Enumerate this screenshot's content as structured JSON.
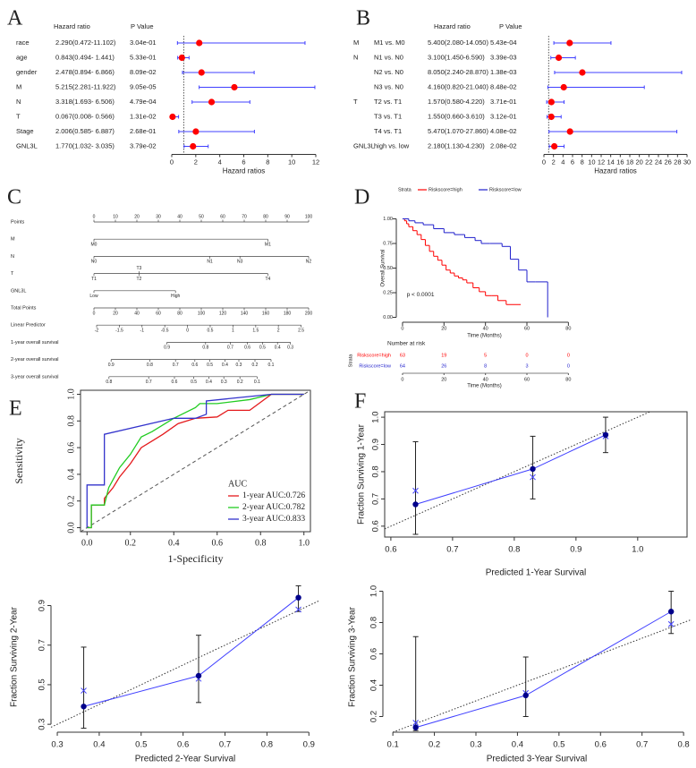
{
  "chart_data": [
    {
      "type": "forest",
      "panel": "A",
      "columns": [
        "Hazard ratio",
        "P Value"
      ],
      "categories": [
        "race",
        "age",
        "gender",
        "M",
        "N",
        "T",
        "Stage",
        "GNL3L"
      ],
      "values": [
        2.29,
        0.843,
        2.478,
        5.215,
        3.318,
        0.067,
        2.006,
        1.77
      ],
      "value_labels": [
        "2.290(0.472-11.102)",
        "0.843(0.494- 1.441)",
        "2.478(0.894- 6.866)",
        "5.215(2.281-11.922)",
        "3.318(1.693- 6.506)",
        "0.067(0.008- 0.566)",
        "2.006(0.585- 6.887)",
        "1.770(1.032- 3.035)"
      ],
      "lower": [
        0.472,
        0.494,
        0.894,
        2.281,
        1.693,
        0.008,
        0.585,
        1.032
      ],
      "upper": [
        11.102,
        1.441,
        6.866,
        11.922,
        6.506,
        0.566,
        6.887,
        3.035
      ],
      "p_values": [
        "3.04e-01",
        "5.33e-01",
        "8.09e-02",
        "9.05e-05",
        "4.79e-04",
        "1.31e-02",
        "2.68e-01",
        "3.79e-02"
      ],
      "color": "#ff0000",
      "ci_color": "#4040ff",
      "reference": 1,
      "xlim": [
        0,
        12
      ],
      "xticks": [
        0,
        2,
        4,
        6,
        8,
        10,
        12
      ],
      "xlabel": "Hazard ratios"
    },
    {
      "type": "forest",
      "panel": "B",
      "columns": [
        "Hazard ratio",
        "P Value"
      ],
      "groups": [
        "M",
        "N",
        null,
        null,
        "T",
        null,
        null,
        "GNL3L"
      ],
      "categories": [
        "M1 vs. M0",
        "N1 vs. N0",
        "N2 vs. N0",
        "N3 vs. N0",
        "T2 vs. T1",
        "T3 vs. T1",
        "T4 vs. T1",
        "high vs. low"
      ],
      "values": [
        5.4,
        3.1,
        8.05,
        4.16,
        1.57,
        1.55,
        5.47,
        2.18
      ],
      "value_labels": [
        "5.400(2.080-14.050)",
        "3.100(1.450-6.590)",
        "8.050(2.240-28.870)",
        "4.160(0.820-21.040)",
        "1.570(0.580-4.220)",
        "1.550(0.660-3.610)",
        "5.470(1.070-27.860)",
        "2.180(1.130-4.230)"
      ],
      "lower": [
        2.08,
        1.45,
        2.24,
        0.82,
        0.58,
        0.66,
        1.07,
        1.13
      ],
      "upper": [
        14.05,
        6.59,
        28.87,
        21.04,
        4.22,
        3.61,
        27.86,
        4.23
      ],
      "p_values": [
        "5.43e-04",
        "3.39e-03",
        "1.38e-03",
        "8.48e-02",
        "3.71e-01",
        "3.12e-01",
        "4.08e-02",
        "2.08e-02"
      ],
      "color": "#ff0000",
      "ci_color": "#4040ff",
      "reference": 1,
      "xlim": [
        0,
        30
      ],
      "xticks": [
        0,
        2,
        4,
        6,
        8,
        10,
        12,
        14,
        16,
        18,
        20,
        22,
        24,
        26,
        28,
        30
      ],
      "xlabel": "Hazard ratios"
    },
    {
      "type": "nomogram",
      "panel": "C",
      "rows": [
        {
          "name": "Points",
          "xlim": [
            0,
            100
          ],
          "ticks": [
            0,
            10,
            20,
            30,
            40,
            50,
            60,
            70,
            80,
            90,
            100
          ]
        },
        {
          "name": "M",
          "xlim": [
            0,
            100
          ],
          "ticks": [
            "M0",
            "M1"
          ],
          "at": [
            0,
            81
          ]
        },
        {
          "name": "N",
          "xlim": [
            0,
            100
          ],
          "ticks": [
            "N0",
            "N1",
            "N2",
            "N3"
          ],
          "at": [
            0,
            54,
            100,
            68
          ]
        },
        {
          "name": "T",
          "xlim": [
            0,
            100
          ],
          "ticks": [
            "T1",
            "T2",
            "T3",
            "T4"
          ],
          "at": [
            0,
            21,
            21,
            81
          ]
        },
        {
          "name": "GNL3L",
          "xlim": [
            0,
            100
          ],
          "ticks": [
            "Low",
            "High"
          ],
          "at": [
            0,
            38
          ]
        },
        {
          "name": "Total Points",
          "xlim": [
            0,
            200
          ],
          "ticks": [
            0,
            20,
            40,
            60,
            80,
            100,
            120,
            140,
            160,
            180,
            200
          ]
        },
        {
          "name": "Linear Predictor",
          "xlim": [
            0,
            200
          ],
          "ticks": [
            -2,
            -1.5,
            -1,
            -0.5,
            0,
            0.5,
            1,
            1.5,
            2,
            2.5
          ],
          "at": [
            2.5,
            23.7,
            44.8,
            66,
            87.2,
            108.3,
            129.5,
            150.7,
            171.8,
            193
          ]
        },
        {
          "name": "1-year overall survival",
          "xlim": [
            0,
            200
          ],
          "ticks": [
            0.9,
            0.8,
            0.7,
            0.6,
            0.5,
            0.4,
            0.3
          ],
          "at": [
            68,
            104,
            127,
            143,
            157,
            171,
            183
          ]
        },
        {
          "name": "2-year overall survival",
          "xlim": [
            0,
            200
          ],
          "ticks": [
            0.9,
            0.8,
            0.7,
            0.6,
            0.5,
            0.4,
            0.3,
            0.2,
            0.1
          ],
          "at": [
            16,
            52,
            76,
            94,
            108,
            122,
            135,
            150,
            165
          ]
        },
        {
          "name": "3-year overall survival",
          "xlim": [
            0,
            200
          ],
          "ticks": [
            0.8,
            0.7,
            0.6,
            0.5,
            0.4,
            0.3,
            0.2,
            0.1
          ],
          "at": [
            14,
            51,
            75,
            93,
            107,
            121,
            136,
            152
          ]
        }
      ]
    },
    {
      "type": "km",
      "panel": "D",
      "legend_title": "Strata",
      "series": [
        {
          "name": "Riskscore=high",
          "color": "#ff0000",
          "x": [
            0,
            1,
            2,
            3,
            5,
            7,
            9,
            11,
            13,
            15,
            17,
            19,
            21,
            23,
            25,
            27,
            29,
            31,
            34,
            37,
            40,
            43,
            46,
            50,
            57
          ],
          "values": [
            1,
            0.98,
            0.95,
            0.92,
            0.88,
            0.84,
            0.79,
            0.73,
            0.67,
            0.62,
            0.58,
            0.53,
            0.48,
            0.45,
            0.42,
            0.4,
            0.38,
            0.35,
            0.3,
            0.26,
            0.22,
            0.22,
            0.17,
            0.13,
            0.13
          ]
        },
        {
          "name": "Riskscore=low",
          "color": "#1f1fcc",
          "x": [
            0,
            3,
            6,
            10,
            15,
            20,
            25,
            30,
            35,
            38,
            42,
            48,
            52,
            56,
            60,
            64,
            70
          ],
          "values": [
            1,
            0.98,
            0.96,
            0.94,
            0.9,
            0.86,
            0.84,
            0.81,
            0.78,
            0.75,
            0.75,
            0.72,
            0.59,
            0.48,
            0.36,
            0.36,
            0
          ]
        }
      ],
      "xlim": [
        -3,
        82
      ],
      "xticks": [
        0,
        20,
        40,
        60,
        80
      ],
      "ylim": [
        -0.05,
        1.05
      ],
      "yticks": [
        {
          "value": 0,
          "label": "0.00"
        },
        0.25,
        {
          "value": 0.5,
          "label": "0.50"
        },
        0.75,
        {
          "value": 1,
          "label": "1.00"
        }
      ],
      "xlabel": "Time (Months)",
      "ylabel": "Overall Survival",
      "annotation": "p < 0.0001",
      "risk_table": {
        "title": "Number at risk",
        "ylabel": "Strata",
        "xlabel": "Time (Months)",
        "times": [
          0,
          20,
          40,
          60,
          80
        ],
        "rows": [
          [
            63,
            19,
            5,
            0,
            0
          ],
          [
            64,
            26,
            8,
            3,
            0
          ]
        ]
      }
    },
    {
      "type": "roc",
      "panel": "E",
      "frame": true,
      "legend_title": "AUC",
      "series": [
        {
          "name": "1-year AUC:0.726",
          "color": "#e41a1c",
          "x": [
            0,
            0.02,
            0.02,
            0.08,
            0.08,
            0.12,
            0.15,
            0.2,
            0.25,
            0.3,
            0.35,
            0.42,
            0.5,
            0.6,
            0.65,
            0.75,
            0.85,
            1
          ],
          "values": [
            0,
            0,
            0.17,
            0.17,
            0.22,
            0.3,
            0.38,
            0.48,
            0.6,
            0.65,
            0.7,
            0.78,
            0.82,
            0.83,
            0.88,
            0.88,
            1,
            1
          ]
        },
        {
          "name": "2-year AUC:0.782",
          "color": "#22cc22",
          "x": [
            0,
            0.02,
            0.02,
            0.08,
            0.1,
            0.15,
            0.2,
            0.25,
            0.3,
            0.4,
            0.5,
            0.52,
            0.6,
            0.75,
            0.85,
            1
          ],
          "values": [
            0,
            0,
            0.17,
            0.17,
            0.3,
            0.45,
            0.55,
            0.68,
            0.72,
            0.82,
            0.9,
            0.93,
            0.93,
            0.96,
            1,
            1
          ]
        },
        {
          "name": "3-year AUC:0.833",
          "color": "#3333cc",
          "x": [
            0,
            0,
            0.08,
            0.08,
            0.4,
            0.5,
            0.55,
            0.55,
            0.85,
            1
          ],
          "values": [
            0,
            0.32,
            0.32,
            0.7,
            0.82,
            0.82,
            0.85,
            0.95,
            1,
            1
          ]
        }
      ],
      "xlim": [
        -0.03,
        1.03
      ],
      "xticks": [
        {
          "value": 0,
          "label": "0.0"
        },
        0.2,
        0.4,
        0.6,
        0.8,
        {
          "value": 1,
          "label": "1.0"
        }
      ],
      "ylim": [
        -0.03,
        1.03
      ],
      "yticks": [
        {
          "value": 0,
          "label": "0.0"
        },
        0.2,
        0.4,
        0.6,
        0.8,
        {
          "value": 1,
          "label": "1.0"
        }
      ],
      "xlabel": "1-Specificity",
      "ylabel": "Sensitivity"
    },
    {
      "type": "calibration",
      "panel": "F",
      "frame": true,
      "x": [
        0.64,
        0.83,
        0.948
      ],
      "values": [
        0.68,
        0.81,
        0.935
      ],
      "ci_lower": [
        0.57,
        0.7,
        0.87
      ],
      "ci_upper": [
        0.91,
        0.93,
        1.0
      ],
      "corrected": [
        0.73,
        0.78,
        0.93
      ],
      "color": "#00008b",
      "line_color": "#4040ff",
      "xlim": [
        0.59,
        1.08
      ],
      "xticks": [
        0.6,
        0.7,
        0.8,
        0.9,
        {
          "value": 1,
          "label": "1.0"
        }
      ],
      "ylim": [
        0.56,
        1.02
      ],
      "yticks": [
        0.6,
        0.7,
        0.8,
        0.9,
        {
          "value": 1,
          "label": "1.0"
        }
      ],
      "xlabel": "Predicted 1-Year Survival",
      "ylabel": "Fraction Surviving 1-Year"
    },
    {
      "type": "calibration",
      "x": [
        0.363,
        0.637,
        0.875
      ],
      "values": [
        0.39,
        0.545,
        0.94
      ],
      "ci_lower": [
        0.28,
        0.41,
        0.87
      ],
      "ci_upper": [
        0.69,
        0.75,
        1.0
      ],
      "corrected": [
        0.47,
        0.53,
        0.88
      ],
      "color": "#00008b",
      "line_color": "#4040ff",
      "xlim": [
        0.285,
        0.925
      ],
      "xticks": [
        0.3,
        0.4,
        0.5,
        0.6,
        0.7,
        0.8,
        0.9
      ],
      "ylim": [
        0.26,
        1.02
      ],
      "yticks": [
        0.3,
        0.5,
        0.7,
        0.9
      ],
      "xlabel": "Predicted 2-Year Survival",
      "ylabel": "Fraction Surviving 2-Year"
    },
    {
      "type": "calibration",
      "x": [
        0.155,
        0.42,
        0.77
      ],
      "values": [
        0.13,
        0.335,
        0.87
      ],
      "ci_lower": [
        0.11,
        0.2,
        0.73
      ],
      "ci_upper": [
        0.71,
        0.58,
        1.0
      ],
      "corrected": [
        0.16,
        0.35,
        0.79
      ],
      "color": "#00008b",
      "line_color": "#4040ff",
      "xlim": [
        0.076,
        0.817
      ],
      "xticks": [
        0.1,
        0.2,
        0.3,
        0.4,
        0.5,
        0.6,
        0.7,
        0.8
      ],
      "ylim": [
        0.1,
        1.06
      ],
      "yticks": [
        0.2,
        0.4,
        0.6,
        0.8,
        {
          "value": 1,
          "label": "1.0"
        }
      ],
      "xlabel": "Predicted 3-Year Survival",
      "ylabel": "Fraction Surviving 3-Year"
    }
  ]
}
